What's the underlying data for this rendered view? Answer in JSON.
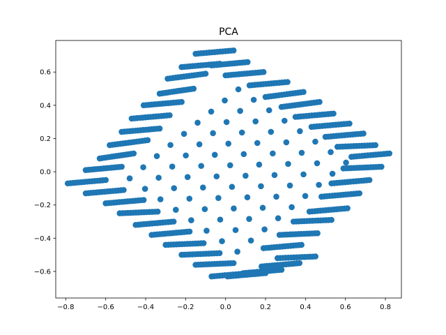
{
  "chart_data": {
    "type": "scatter",
    "title": "PCA",
    "xlabel": "",
    "ylabel": "",
    "xlim": [
      -0.85,
      0.88
    ],
    "ylim": [
      -0.76,
      0.79
    ],
    "xticks": [
      -0.8,
      -0.6,
      -0.4,
      -0.2,
      0.0,
      0.2,
      0.4,
      0.6,
      0.8
    ],
    "xtick_labels": [
      "−0.8",
      "−0.6",
      "−0.4",
      "−0.2",
      "0.0",
      "0.2",
      "0.4",
      "0.6",
      "0.8"
    ],
    "yticks": [
      -0.6,
      -0.4,
      -0.2,
      0.0,
      0.2,
      0.4,
      0.6
    ],
    "ytick_labels": [
      "−0.6",
      "−0.4",
      "−0.2",
      "0.0",
      "0.2",
      "0.4",
      "0.6"
    ],
    "grid": false,
    "marker_color": "#1f77b4",
    "series": [
      {
        "clusters": [
          {
            "start": [
              -0.79,
              -0.07
            ],
            "end": [
              -0.6,
              -0.05
            ],
            "count": 15
          },
          {
            "start": [
              -0.7,
              -0.13
            ],
            "end": [
              -0.51,
              -0.11
            ],
            "count": 15
          },
          {
            "start": [
              -0.6,
              -0.19
            ],
            "end": [
              -0.41,
              -0.17
            ],
            "count": 15
          },
          {
            "start": [
              -0.53,
              -0.25
            ],
            "end": [
              -0.34,
              -0.24
            ],
            "count": 15
          },
          {
            "start": [
              -0.45,
              -0.32
            ],
            "end": [
              -0.26,
              -0.3
            ],
            "count": 15
          },
          {
            "start": [
              -0.37,
              -0.38
            ],
            "end": [
              -0.18,
              -0.36
            ],
            "count": 15
          },
          {
            "start": [
              -0.3,
              -0.44
            ],
            "end": [
              -0.11,
              -0.43
            ],
            "count": 15
          },
          {
            "start": [
              -0.22,
              -0.5
            ],
            "end": [
              -0.03,
              -0.49
            ],
            "count": 15
          },
          {
            "start": [
              -0.15,
              -0.56
            ],
            "end": [
              0.04,
              -0.55
            ],
            "count": 15
          },
          {
            "start": [
              -0.07,
              -0.63
            ],
            "end": [
              0.12,
              -0.61
            ],
            "count": 15
          },
          {
            "start": [
              0.01,
              -0.63
            ],
            "end": [
              0.2,
              -0.61
            ],
            "count": 15
          },
          {
            "start": [
              0.09,
              -0.61
            ],
            "end": [
              0.28,
              -0.59
            ],
            "count": 15
          },
          {
            "start": [
              0.18,
              -0.57
            ],
            "end": [
              0.37,
              -0.55
            ],
            "count": 15
          },
          {
            "start": [
              0.26,
              -0.52
            ],
            "end": [
              0.45,
              -0.51
            ],
            "count": 15
          },
          {
            "start": [
              0.19,
              -0.46
            ],
            "end": [
              0.38,
              -0.44
            ],
            "count": 15
          },
          {
            "start": [
              0.27,
              -0.38
            ],
            "end": [
              0.46,
              -0.37
            ],
            "count": 15
          },
          {
            "start": [
              0.34,
              -0.3
            ],
            "end": [
              0.53,
              -0.29
            ],
            "count": 15
          },
          {
            "start": [
              0.42,
              -0.24
            ],
            "end": [
              0.61,
              -0.22
            ],
            "count": 15
          },
          {
            "start": [
              0.48,
              -0.15
            ],
            "end": [
              0.67,
              -0.13
            ],
            "count": 15
          },
          {
            "start": [
              0.53,
              -0.07
            ],
            "end": [
              0.72,
              -0.05
            ],
            "count": 15
          },
          {
            "start": [
              0.59,
              0.02
            ],
            "end": [
              0.78,
              0.03
            ],
            "count": 15
          },
          {
            "start": [
              0.63,
              0.09
            ],
            "end": [
              0.82,
              0.11
            ],
            "count": 15
          },
          {
            "start": [
              0.56,
              0.15
            ],
            "end": [
              0.75,
              0.16
            ],
            "count": 15
          },
          {
            "start": [
              0.5,
              0.21
            ],
            "end": [
              0.69,
              0.23
            ],
            "count": 15
          },
          {
            "start": [
              0.43,
              0.27
            ],
            "end": [
              0.62,
              0.29
            ],
            "count": 15
          },
          {
            "start": [
              0.35,
              0.33
            ],
            "end": [
              0.54,
              0.35
            ],
            "count": 15
          },
          {
            "start": [
              0.28,
              0.39
            ],
            "end": [
              0.47,
              0.42
            ],
            "count": 15
          },
          {
            "start": [
              0.2,
              0.45
            ],
            "end": [
              0.39,
              0.48
            ],
            "count": 15
          },
          {
            "start": [
              0.12,
              0.52
            ],
            "end": [
              0.31,
              0.54
            ],
            "count": 15
          },
          {
            "start": [
              0.0,
              0.58
            ],
            "end": [
              0.19,
              0.6
            ],
            "count": 15
          },
          {
            "start": [
              -0.07,
              0.64
            ],
            "end": [
              0.11,
              0.66
            ],
            "count": 15
          },
          {
            "start": [
              -0.15,
              0.71
            ],
            "end": [
              0.04,
              0.73
            ],
            "count": 15
          },
          {
            "start": [
              -0.22,
              0.63
            ],
            "end": [
              -0.03,
              0.65
            ],
            "count": 15
          },
          {
            "start": [
              -0.29,
              0.56
            ],
            "end": [
              -0.1,
              0.59
            ],
            "count": 15
          },
          {
            "start": [
              -0.33,
              0.47
            ],
            "end": [
              -0.16,
              0.5
            ],
            "count": 15
          },
          {
            "start": [
              -0.41,
              0.4
            ],
            "end": [
              -0.22,
              0.42
            ],
            "count": 15
          },
          {
            "start": [
              -0.47,
              0.32
            ],
            "end": [
              -0.28,
              0.34
            ],
            "count": 15
          },
          {
            "start": [
              -0.52,
              0.24
            ],
            "end": [
              -0.33,
              0.26
            ],
            "count": 15
          },
          {
            "start": [
              -0.58,
              0.16
            ],
            "end": [
              -0.39,
              0.19
            ],
            "count": 15
          },
          {
            "start": [
              -0.63,
              0.08
            ],
            "end": [
              -0.46,
              0.11
            ],
            "count": 15
          },
          {
            "start": [
              -0.7,
              0.01
            ],
            "end": [
              -0.52,
              0.03
            ],
            "count": 15
          }
        ],
        "interior_grid": {
          "origin": [
            -0.48,
            -0.04
          ],
          "step_u": [
            0.077,
            -0.063
          ],
          "step_v": [
            0.068,
            0.067
          ],
          "nu": 8,
          "nv": 9
        }
      }
    ]
  }
}
